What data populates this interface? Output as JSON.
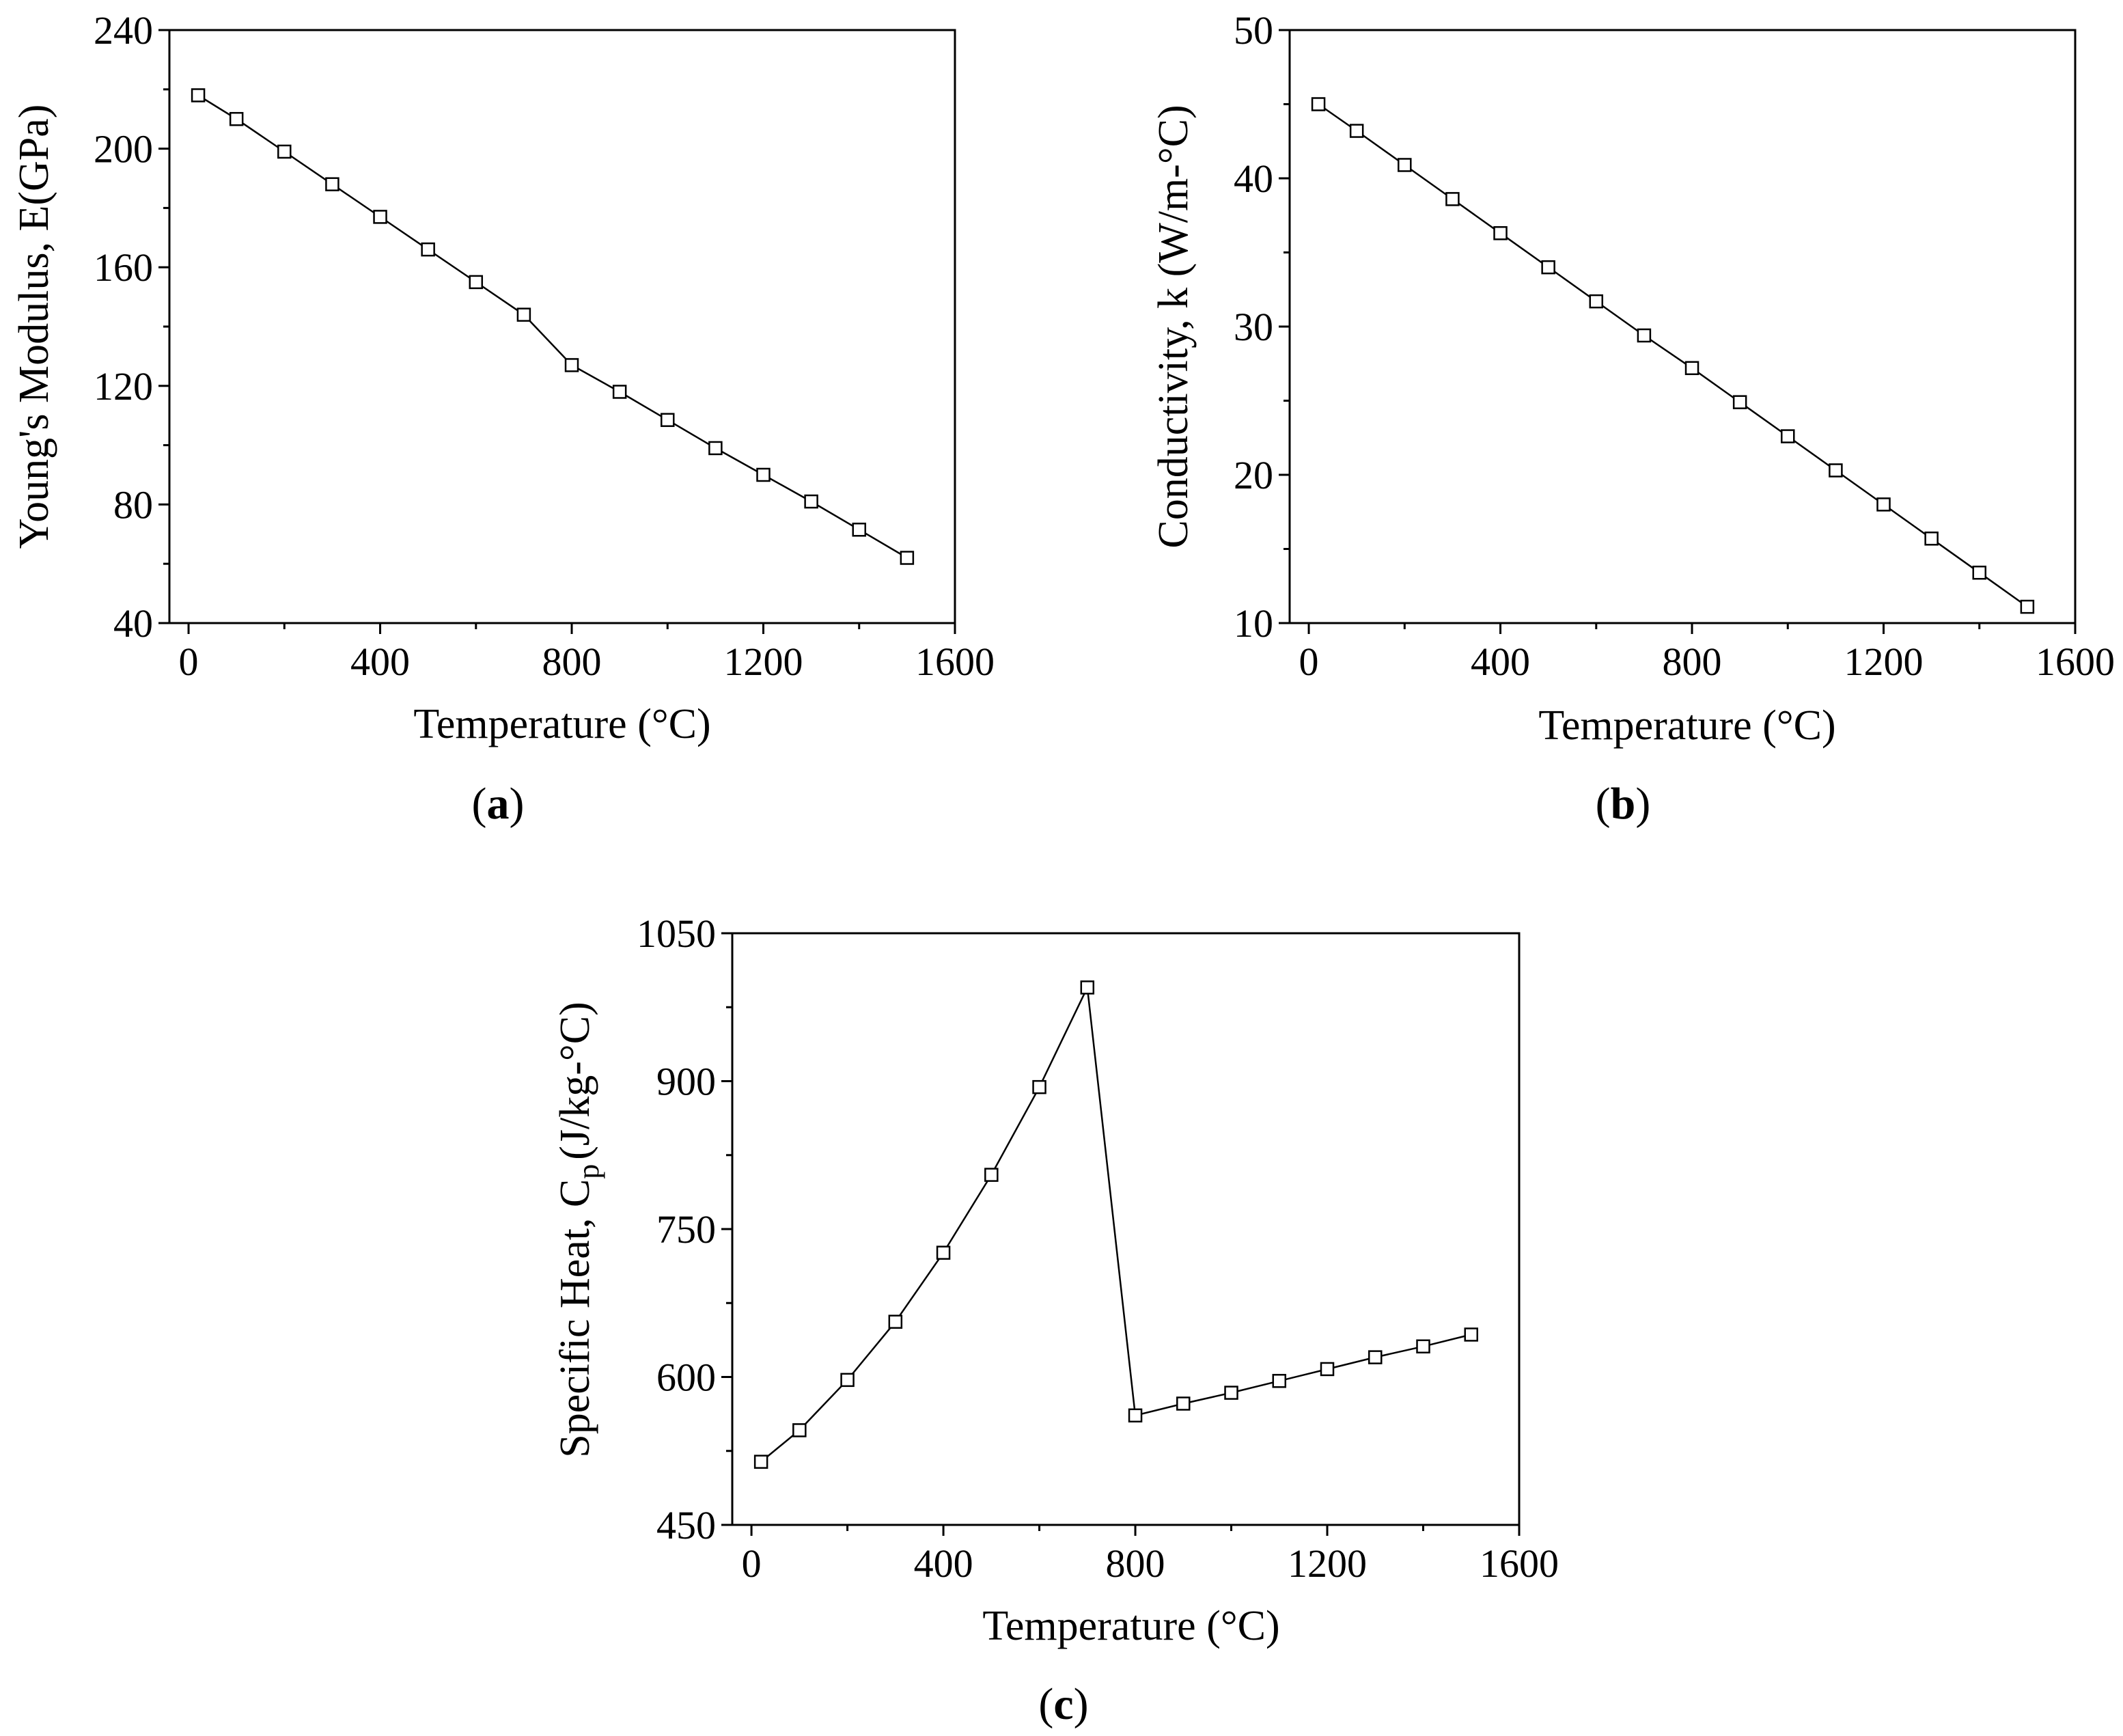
{
  "chart_data": [
    {
      "panel": "(a)",
      "panel_letter": "a",
      "type": "line",
      "marker": "open-square",
      "xlabel": "Temperature (°C)",
      "ylabel": "Young's Modulus, E(GPa)",
      "xlim": [
        -40,
        1600
      ],
      "ylim": [
        40,
        240
      ],
      "xticks": [
        0,
        400,
        800,
        1200,
        1600
      ],
      "yticks": [
        40,
        80,
        120,
        160,
        200,
        240
      ],
      "x": [
        20,
        100,
        200,
        300,
        400,
        500,
        600,
        700,
        800,
        900,
        1000,
        1100,
        1200,
        1300,
        1400,
        1500
      ],
      "y": [
        218,
        210,
        199,
        188,
        177,
        166,
        155,
        144,
        127,
        118,
        108.5,
        99,
        90,
        81,
        71.5,
        62
      ]
    },
    {
      "panel": "(b)",
      "panel_letter": "b",
      "type": "line",
      "marker": "open-square",
      "xlabel": "Temperature (°C)",
      "ylabel": "Conductivity, k (W/m-°C)",
      "xlim": [
        -40,
        1600
      ],
      "ylim": [
        10,
        50
      ],
      "xticks": [
        0,
        400,
        800,
        1200,
        1600
      ],
      "yticks": [
        10,
        20,
        30,
        40,
        50
      ],
      "x": [
        20,
        100,
        200,
        300,
        400,
        500,
        600,
        700,
        800,
        900,
        1000,
        1100,
        1200,
        1300,
        1400,
        1500
      ],
      "y": [
        45,
        43.2,
        40.9,
        38.6,
        36.3,
        34.0,
        31.7,
        29.4,
        27.2,
        24.9,
        22.6,
        20.3,
        18.0,
        15.7,
        13.4,
        11.1
      ]
    },
    {
      "panel": "(c)",
      "panel_letter": "c",
      "type": "line",
      "marker": "open-square",
      "xlabel": "Temperature (°C)",
      "ylabel_main": "Specific Heat, C",
      "ylabel_sub": "p",
      "ylabel_tail": "(J/kg-°C)",
      "xlim": [
        -40,
        1600
      ],
      "ylim": [
        450,
        1050
      ],
      "xticks": [
        0,
        400,
        800,
        1200,
        1600
      ],
      "yticks": [
        450,
        600,
        750,
        900,
        1050
      ],
      "x": [
        20,
        100,
        200,
        300,
        400,
        500,
        600,
        700,
        800,
        900,
        1000,
        1100,
        1200,
        1300,
        1400,
        1500
      ],
      "y": [
        514,
        546,
        597,
        656,
        726,
        805,
        894,
        995,
        561,
        573,
        584,
        596,
        608,
        620,
        631,
        643
      ]
    }
  ]
}
